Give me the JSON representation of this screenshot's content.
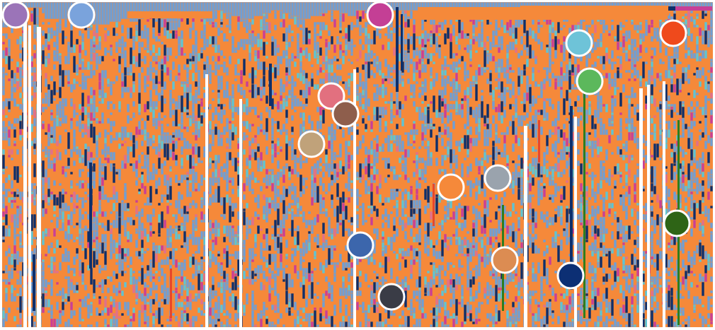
{
  "palette": {
    "background": "#ffffff",
    "blue": "#6e9fd6",
    "orange": "#f5893a",
    "cyan": "#5ec4d4",
    "magenta": "#c83f97",
    "navy": "#0e2f6b",
    "pink": "#e0708b",
    "red": "#e8472a",
    "green": "#2f7d1e",
    "gap": "#ffffff"
  },
  "markers": [
    {
      "name": "marker-purple",
      "color": "#9b74b8"
    },
    {
      "name": "marker-light-blue",
      "color": "#7aa3dc"
    },
    {
      "name": "marker-magenta",
      "color": "#c43f95"
    },
    {
      "name": "marker-sky",
      "color": "#6ec3d8"
    },
    {
      "name": "marker-red",
      "color": "#ef4a1c"
    },
    {
      "name": "marker-green",
      "color": "#5cb85c"
    },
    {
      "name": "marker-pink",
      "color": "#e2707f"
    },
    {
      "name": "marker-brown",
      "color": "#8e5e4c"
    },
    {
      "name": "marker-tan",
      "color": "#c0a27a"
    },
    {
      "name": "marker-orange",
      "color": "#f5893a"
    },
    {
      "name": "marker-gray",
      "color": "#9aa3ad"
    },
    {
      "name": "marker-dark-green",
      "color": "#2e6416"
    },
    {
      "name": "marker-blue",
      "color": "#3c66ac"
    },
    {
      "name": "marker-ochre",
      "color": "#dc8c52"
    },
    {
      "name": "marker-navy",
      "color": "#0c2f74"
    },
    {
      "name": "marker-charcoal",
      "color": "#3a3c46"
    }
  ]
}
